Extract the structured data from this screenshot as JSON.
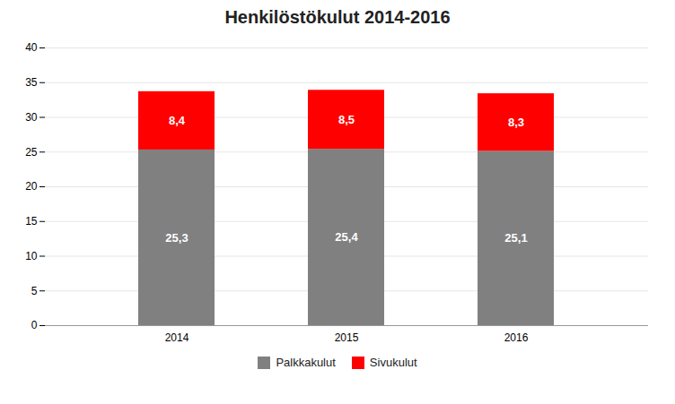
{
  "chart_data": {
    "type": "bar",
    "title": "Henkilöstökulut 2014-2016",
    "categories": [
      "2014",
      "2015",
      "2016"
    ],
    "stacked": true,
    "series": [
      {
        "name": "Palkkakulut",
        "color": "#808080",
        "values": [
          25.3,
          25.4,
          25.1
        ],
        "value_labels": [
          "25,3",
          "25,4",
          "25,1"
        ]
      },
      {
        "name": "Sivukulut",
        "color": "#FF0000",
        "values": [
          8.4,
          8.5,
          8.3
        ],
        "value_labels": [
          "8,4",
          "8,5",
          "8,3"
        ]
      }
    ],
    "ylim": [
      0,
      40
    ],
    "yticks": [
      0,
      5,
      10,
      15,
      20,
      25,
      30,
      35,
      40
    ],
    "grid": true,
    "data_labels": true,
    "legend": "bottom"
  }
}
